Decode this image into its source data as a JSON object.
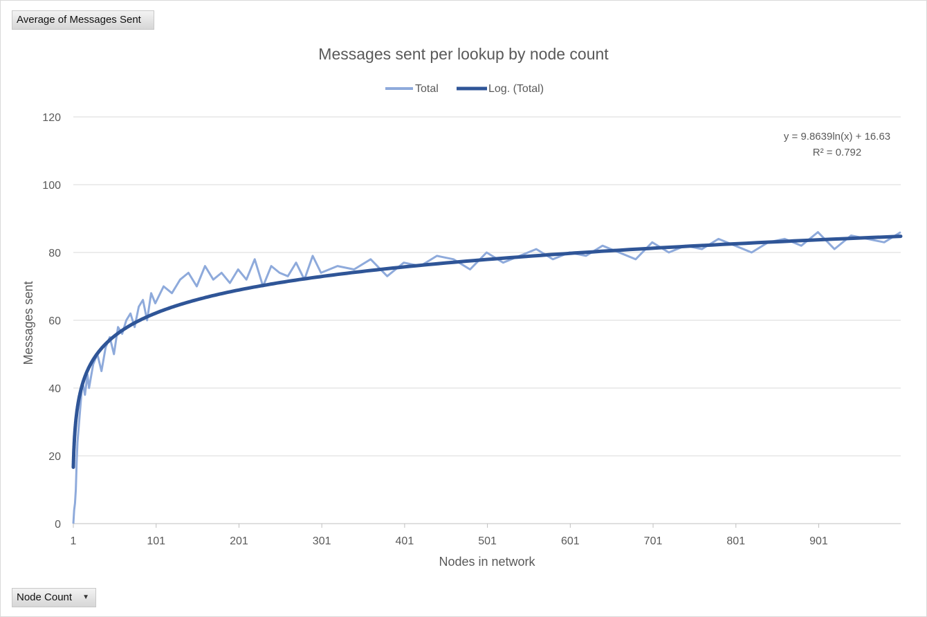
{
  "pivot": {
    "values_field": "Average of Messages Sent",
    "axis_field": "Node Count"
  },
  "chart_data": {
    "type": "line",
    "title": "Messages sent per lookup by node count",
    "xlabel": "Nodes in network",
    "ylabel": "Messages sent",
    "ylim": [
      0,
      120
    ],
    "yticks": [
      "0",
      "20",
      "40",
      "60",
      "80",
      "100",
      "120"
    ],
    "xlim": [
      1,
      1000
    ],
    "xticks": [
      "1",
      "101",
      "201",
      "301",
      "401",
      "501",
      "601",
      "701",
      "801",
      "901"
    ],
    "grid": true,
    "legend_position": "top",
    "series": [
      {
        "name": "Total",
        "color": "#8eaadb",
        "x": [
          1,
          2,
          3,
          4,
          5,
          6,
          8,
          10,
          12,
          15,
          18,
          20,
          25,
          30,
          35,
          40,
          45,
          50,
          55,
          60,
          65,
          70,
          75,
          80,
          85,
          90,
          95,
          100,
          110,
          120,
          130,
          140,
          150,
          160,
          170,
          180,
          190,
          200,
          210,
          220,
          230,
          240,
          250,
          260,
          270,
          280,
          290,
          300,
          320,
          340,
          360,
          380,
          400,
          420,
          440,
          460,
          480,
          500,
          520,
          540,
          560,
          580,
          600,
          620,
          640,
          660,
          680,
          700,
          720,
          740,
          760,
          780,
          800,
          820,
          840,
          860,
          880,
          900,
          920,
          940,
          960,
          980,
          1000
        ],
        "values": [
          0,
          4,
          6,
          10,
          18,
          24,
          30,
          36,
          42,
          38,
          44,
          40,
          47,
          50,
          45,
          52,
          55,
          50,
          58,
          56,
          60,
          62,
          58,
          64,
          66,
          60,
          68,
          65,
          70,
          68,
          72,
          74,
          70,
          76,
          72,
          74,
          71,
          75,
          72,
          78,
          70,
          76,
          74,
          73,
          77,
          72,
          79,
          74,
          76,
          75,
          78,
          73,
          77,
          76,
          79,
          78,
          75,
          80,
          77,
          79,
          81,
          78,
          80,
          79,
          82,
          80,
          78,
          83,
          80,
          82,
          81,
          84,
          82,
          80,
          83,
          84,
          82,
          86,
          81,
          85,
          84,
          83,
          86
        ]
      },
      {
        "name": "Log. (Total)",
        "color": "#2f5597",
        "trendline": {
          "type": "log",
          "a": 9.8639,
          "b": 16.63
        }
      }
    ],
    "annotations": {
      "equation": "y = 9.8639ln(x) + 16.63",
      "r_squared": "R² = 0.792"
    }
  }
}
